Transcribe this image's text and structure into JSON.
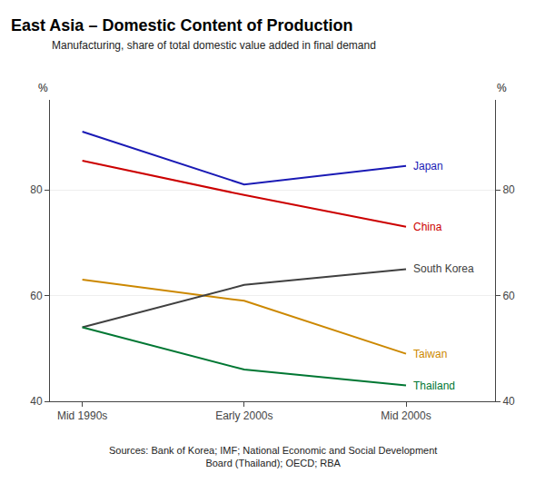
{
  "chart_data": {
    "type": "line",
    "title": "East Asia – Domestic Content of Production",
    "subtitle": "Manufacturing, share of total domestic value added in final demand",
    "categories": [
      "Mid 1990s",
      "Early 2000s",
      "Mid 2000s"
    ],
    "series": [
      {
        "name": "Japan",
        "color": "#1a1ab5",
        "values": [
          91,
          81,
          84.5
        ]
      },
      {
        "name": "China",
        "color": "#cc0000",
        "values": [
          85.5,
          79,
          73
        ]
      },
      {
        "name": "Taiwan",
        "color": "#cc8800",
        "values": [
          63,
          59,
          49
        ]
      },
      {
        "name": "South Korea",
        "color": "#404040",
        "values": [
          54,
          62,
          65
        ]
      },
      {
        "name": "Thailand",
        "color": "#007733",
        "values": [
          54,
          46,
          43
        ]
      }
    ],
    "ylabel": "%",
    "y2label": "%",
    "ylim": [
      40,
      97
    ],
    "yticks": [
      40,
      60,
      80
    ],
    "y2lim": [
      40,
      97
    ],
    "y2ticks": [
      40,
      60,
      80
    ],
    "grid": true,
    "source": "Sources: Bank of Korea; IMF; National Economic and Social Development\nBoard (Thailand); OECD; RBA"
  }
}
